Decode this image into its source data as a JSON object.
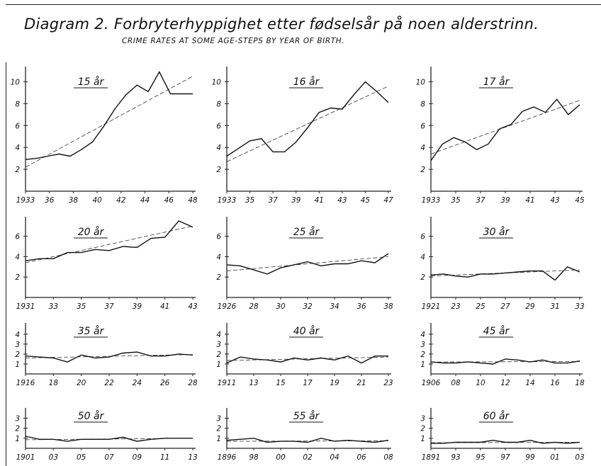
{
  "title": "Diagram 2. Forbryterhyppighet etter fødselsår på noen alderstrinn.",
  "subtitle": "CRIME RATES AT SOME AGE-STEPS BY YEAR OF BIRTH.",
  "chart_data": [
    {
      "type": "line",
      "title": "15 år",
      "x_ticks": [
        "1933",
        "36",
        "38",
        "40",
        "42",
        "44",
        "46",
        "48"
      ],
      "y_ticks": [
        "2",
        "4",
        "6",
        "8",
        "10"
      ],
      "ylim": [
        0,
        11
      ],
      "x": [
        1933,
        1934,
        1935,
        1936,
        1937,
        1938,
        1939,
        1940,
        1941,
        1942,
        1943,
        1944,
        1945,
        1946,
        1947,
        1948
      ],
      "values": [
        2.9,
        3.0,
        3.2,
        3.4,
        3.2,
        3.8,
        4.5,
        5.9,
        7.5,
        8.8,
        9.7,
        9.1,
        10.9,
        8.9,
        8.9,
        8.9
      ],
      "trend": [
        [
          1933,
          2.2
        ],
        [
          1948,
          10.5
        ]
      ]
    },
    {
      "type": "line",
      "title": "16 år",
      "x_ticks": [
        "1933",
        "35",
        "37",
        "39",
        "41",
        "43",
        "45",
        "47"
      ],
      "y_ticks": [
        "2",
        "4",
        "6",
        "8",
        "10"
      ],
      "ylim": [
        0,
        11
      ],
      "x": [
        1933,
        1934,
        1935,
        1936,
        1937,
        1938,
        1939,
        1940,
        1941,
        1942,
        1943,
        1944,
        1945,
        1946,
        1947
      ],
      "values": [
        3.2,
        3.9,
        4.6,
        4.8,
        3.6,
        3.6,
        4.5,
        5.8,
        7.2,
        7.6,
        7.5,
        8.8,
        10.0,
        9.1,
        8.1
      ],
      "trend": [
        [
          1933,
          2.7
        ],
        [
          1947,
          9.6
        ]
      ]
    },
    {
      "type": "line",
      "title": "17 år",
      "x_ticks": [
        "1933",
        "35",
        "37",
        "39",
        "41",
        "43",
        "45"
      ],
      "y_ticks": [
        "2",
        "4",
        "6",
        "8",
        "10"
      ],
      "ylim": [
        0,
        11
      ],
      "x": [
        1933,
        1934,
        1935,
        1936,
        1937,
        1938,
        1939,
        1940,
        1941,
        1942,
        1943,
        1944,
        1945,
        1946
      ],
      "values": [
        2.8,
        4.3,
        4.9,
        4.5,
        3.8,
        4.3,
        5.7,
        6.1,
        7.3,
        7.7,
        7.2,
        8.4,
        7.0,
        7.9
      ],
      "trend": [
        [
          1933,
          3.4
        ],
        [
          1946,
          8.3
        ]
      ]
    },
    {
      "type": "line",
      "title": "20 år",
      "x_ticks": [
        "1931",
        "33",
        "35",
        "37",
        "39",
        "41",
        "43"
      ],
      "y_ticks": [
        "2",
        "4",
        "6"
      ],
      "ylim": [
        0,
        7.5
      ],
      "x": [
        1931,
        1932,
        1933,
        1934,
        1935,
        1936,
        1937,
        1938,
        1939,
        1940,
        1941,
        1942,
        1943
      ],
      "values": [
        3.6,
        3.8,
        3.8,
        4.4,
        4.4,
        4.7,
        4.6,
        5.0,
        4.9,
        5.8,
        5.9,
        7.5,
        6.9
      ],
      "trend": [
        [
          1931,
          3.4
        ],
        [
          1943,
          7.0
        ]
      ]
    },
    {
      "type": "line",
      "title": "25 år",
      "x_ticks": [
        "1926",
        "28",
        "30",
        "32",
        "34",
        "36",
        "38"
      ],
      "y_ticks": [
        "2",
        "4",
        "6"
      ],
      "ylim": [
        0,
        7.5
      ],
      "x": [
        1926,
        1927,
        1928,
        1929,
        1930,
        1931,
        1932,
        1933,
        1934,
        1935,
        1936,
        1937,
        1938
      ],
      "values": [
        3.2,
        3.1,
        2.7,
        2.3,
        2.9,
        3.2,
        3.5,
        3.1,
        3.3,
        3.3,
        3.6,
        3.4,
        4.3
      ],
      "trend": [
        [
          1926,
          2.6
        ],
        [
          1938,
          4.0
        ]
      ]
    },
    {
      "type": "line",
      "title": "30 år",
      "x_ticks": [
        "1921",
        "23",
        "25",
        "27",
        "29",
        "31",
        "33"
      ],
      "y_ticks": [
        "2",
        "4",
        "6"
      ],
      "ylim": [
        0,
        7.5
      ],
      "x": [
        1921,
        1922,
        1923,
        1924,
        1925,
        1926,
        1927,
        1928,
        1929,
        1930,
        1931,
        1932,
        1933
      ],
      "values": [
        2.2,
        2.3,
        2.1,
        2.0,
        2.3,
        2.3,
        2.4,
        2.5,
        2.6,
        2.6,
        1.7,
        3.0,
        2.5
      ],
      "trend": [
        [
          1921,
          2.1
        ],
        [
          1933,
          2.7
        ]
      ]
    },
    {
      "type": "line",
      "title": "35 år",
      "x_ticks": [
        "1916",
        "18",
        "20",
        "22",
        "24",
        "26",
        "28"
      ],
      "y_ticks": [
        "1",
        "2",
        "3",
        "4"
      ],
      "ylim": [
        0,
        4.7
      ],
      "x": [
        1916,
        1917,
        1918,
        1919,
        1920,
        1921,
        1922,
        1923,
        1924,
        1925,
        1926,
        1927,
        1928
      ],
      "values": [
        1.8,
        1.7,
        1.6,
        1.2,
        1.9,
        1.6,
        1.7,
        2.1,
        2.2,
        1.8,
        1.8,
        2.0,
        1.9
      ],
      "trend": [
        [
          1916,
          1.6
        ],
        [
          1928,
          1.95
        ]
      ]
    },
    {
      "type": "line",
      "title": "40 år",
      "x_ticks": [
        "1911",
        "13",
        "15",
        "17",
        "19",
        "21",
        "23"
      ],
      "y_ticks": [
        "1",
        "2",
        "3",
        "4"
      ],
      "ylim": [
        0,
        4.7
      ],
      "x": [
        1911,
        1912,
        1913,
        1914,
        1915,
        1916,
        1917,
        1918,
        1919,
        1920,
        1921,
        1922,
        1923
      ],
      "values": [
        1.1,
        1.7,
        1.5,
        1.4,
        1.2,
        1.6,
        1.4,
        1.6,
        1.4,
        1.8,
        1.1,
        1.8,
        1.8
      ],
      "trend": [
        [
          1911,
          1.35
        ],
        [
          1923,
          1.7
        ]
      ]
    },
    {
      "type": "line",
      "title": "45 år",
      "x_ticks": [
        "1906",
        "08",
        "10",
        "12",
        "14",
        "16",
        "18"
      ],
      "y_ticks": [
        "1",
        "2",
        "3",
        "4"
      ],
      "ylim": [
        0,
        4.7
      ],
      "x": [
        1906,
        1907,
        1908,
        1909,
        1910,
        1911,
        1912,
        1913,
        1914,
        1915,
        1916,
        1917,
        1918
      ],
      "values": [
        1.2,
        1.1,
        1.1,
        1.2,
        1.1,
        1.0,
        1.5,
        1.4,
        1.2,
        1.4,
        1.1,
        1.1,
        1.3
      ],
      "trend": [
        [
          1906,
          1.2
        ],
        [
          1918,
          1.25
        ]
      ]
    },
    {
      "type": "line",
      "title": "50 år",
      "x_ticks": [
        "1901",
        "03",
        "05",
        "07",
        "09",
        "11",
        "13"
      ],
      "y_ticks": [
        "1",
        "2",
        "3"
      ],
      "ylim": [
        0,
        3.6
      ],
      "x": [
        1901,
        1902,
        1903,
        1904,
        1905,
        1906,
        1907,
        1908,
        1909,
        1910,
        1911,
        1912,
        1913
      ],
      "values": [
        1.2,
        0.9,
        0.9,
        0.7,
        0.9,
        0.9,
        0.9,
        1.1,
        0.7,
        0.9,
        1.0,
        1.0,
        1.0
      ],
      "trend": [
        [
          1901,
          0.85
        ],
        [
          1913,
          1.0
        ]
      ]
    },
    {
      "type": "line",
      "title": "55 år",
      "x_ticks": [
        "1896",
        "98",
        "00",
        "02",
        "04",
        "06",
        "08"
      ],
      "y_ticks": [
        "1",
        "2",
        "3"
      ],
      "ylim": [
        0,
        3.6
      ],
      "x": [
        1896,
        1897,
        1898,
        1899,
        1900,
        1901,
        1902,
        1903,
        1904,
        1905,
        1906,
        1907,
        1908
      ],
      "values": [
        0.8,
        0.9,
        1.0,
        0.6,
        0.7,
        0.7,
        0.6,
        1.0,
        0.7,
        0.8,
        0.7,
        0.6,
        0.8
      ],
      "trend": [
        [
          1896,
          0.7
        ],
        [
          1908,
          0.75
        ]
      ]
    },
    {
      "type": "line",
      "title": "60 år",
      "x_ticks": [
        "1891",
        "93",
        "95",
        "97",
        "99",
        "01",
        "03"
      ],
      "y_ticks": [
        "1",
        "2",
        "3"
      ],
      "ylim": [
        0,
        3.6
      ],
      "x": [
        1891,
        1892,
        1893,
        1894,
        1895,
        1896,
        1897,
        1898,
        1899,
        1900,
        1901,
        1902,
        1903
      ],
      "values": [
        0.5,
        0.5,
        0.6,
        0.6,
        0.6,
        0.8,
        0.6,
        0.6,
        0.8,
        0.5,
        0.6,
        0.5,
        0.6
      ],
      "trend": [
        [
          1891,
          0.55
        ],
        [
          1903,
          0.6
        ]
      ]
    }
  ]
}
